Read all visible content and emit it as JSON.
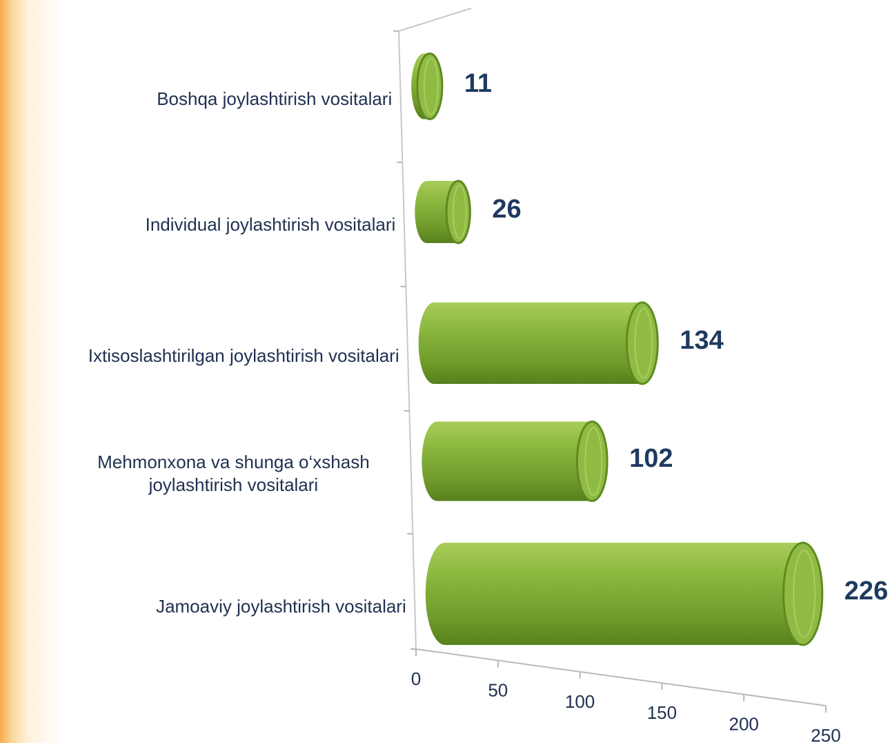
{
  "chart_data": {
    "type": "bar",
    "orientation": "horizontal",
    "categories": [
      "Boshqa joylashtirish vositalari",
      "Individual  joylashtirish vositalari",
      "Ixtisoslashtirilgan joylashtirish vositalari",
      "Mehmonxona va shunga o‘xshash joylashtirish vositalari",
      "Jamoaviy joylashtirish vositalari"
    ],
    "values": [
      11,
      26,
      134,
      102,
      226
    ],
    "color": "#7fa834",
    "xlim": [
      0,
      250
    ],
    "xticks": [
      0,
      50,
      100,
      150,
      200,
      250
    ]
  }
}
